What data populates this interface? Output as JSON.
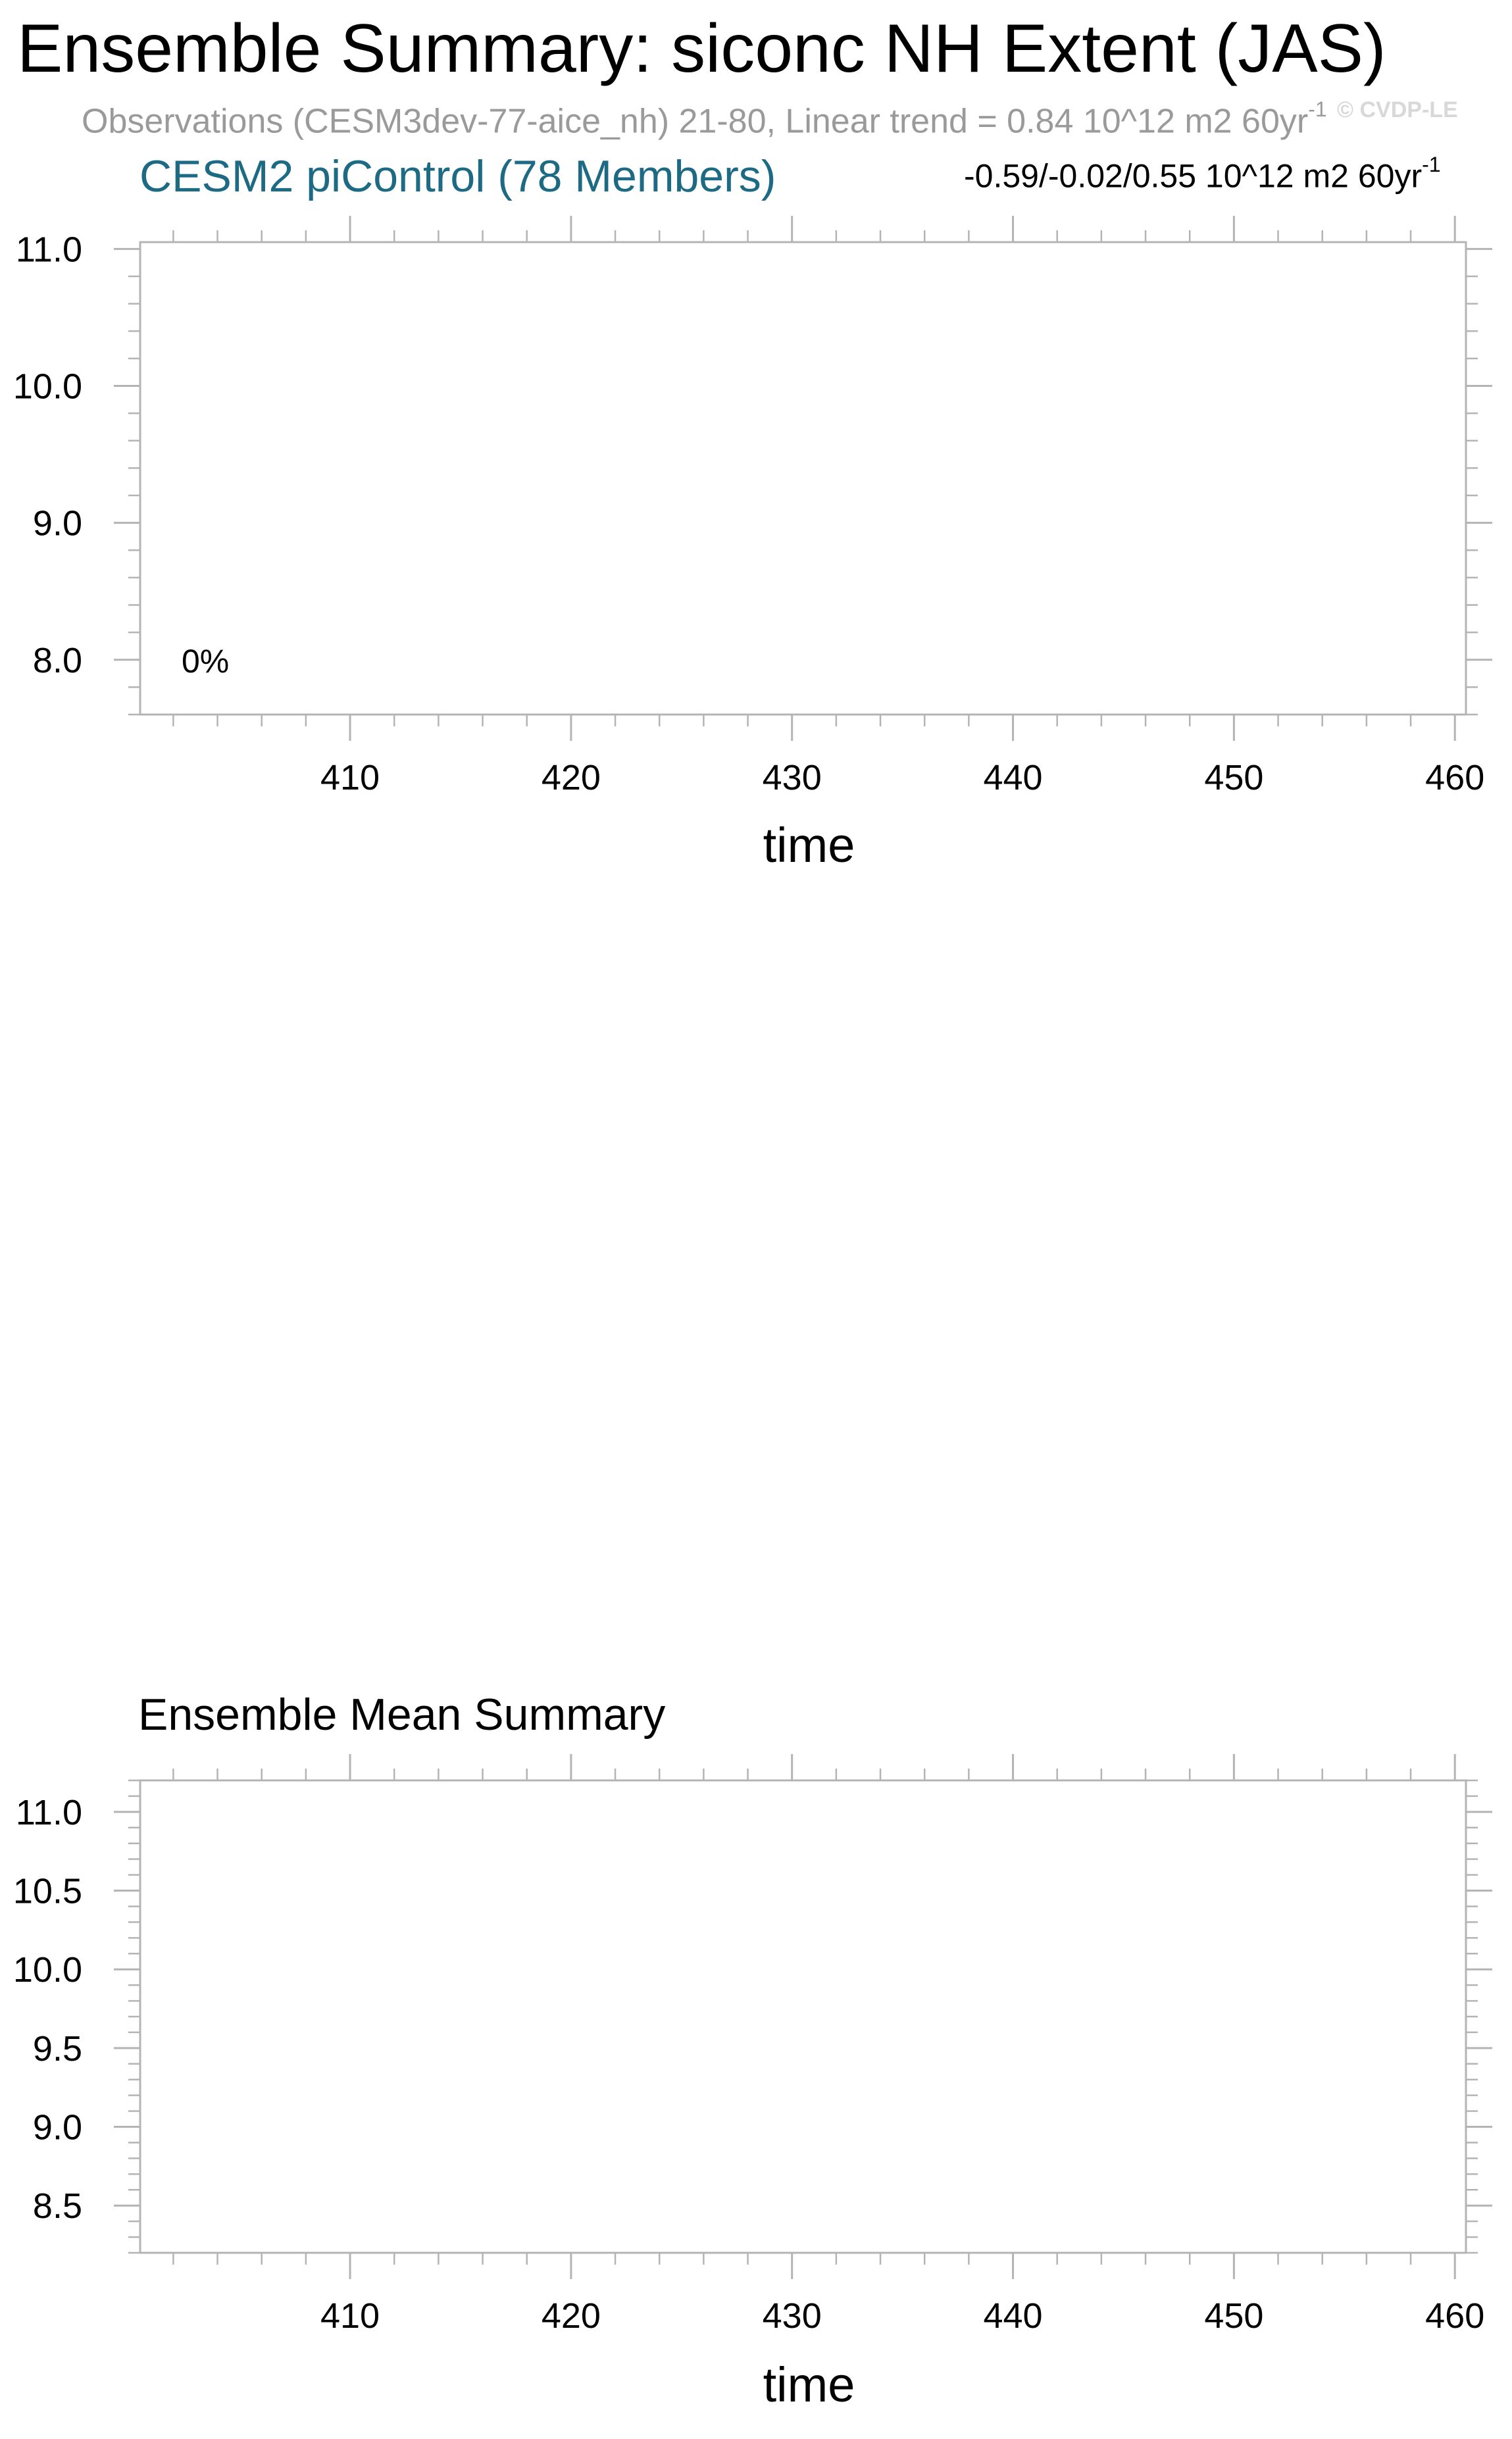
{
  "title": "Ensemble Summary: siconc NH Extent (JAS)",
  "observations": {
    "text": "Observations (CESM3dev-77-aice_nh) 21-80, Linear trend = 0.84 10^12 m2 60yr",
    "superscript": "-1"
  },
  "watermark": "© CVDP-LE",
  "chart_data": [
    {
      "type": "line",
      "title": "CESM2 piControl (78 Members)",
      "title_color": "#1d6a85",
      "annotation": {
        "text": "-0.59/-0.02/0.55 10^12 m2 60yr",
        "superscript": "-1"
      },
      "inset_label": "0%",
      "xlabel": "time",
      "ylabel": "",
      "xlim": [
        400.5,
        460.5
      ],
      "ylim": [
        7.6,
        11.05
      ],
      "x_ticks": [
        410,
        420,
        430,
        440,
        450,
        460
      ],
      "x_tick_labels": [
        "410",
        "420",
        "430",
        "440",
        "450",
        "460"
      ],
      "y_ticks": [
        8.0,
        9.0,
        10.0,
        11.0
      ],
      "y_tick_labels": [
        "8.0",
        "9.0",
        "10.0",
        "11.0"
      ],
      "series": []
    },
    {
      "type": "line",
      "title": "Ensemble Mean Summary",
      "xlabel": "time",
      "ylabel": "",
      "xlim": [
        400.5,
        460.5
      ],
      "ylim": [
        8.2,
        11.2
      ],
      "x_ticks": [
        410,
        420,
        430,
        440,
        450,
        460
      ],
      "x_tick_labels": [
        "410",
        "420",
        "430",
        "440",
        "450",
        "460"
      ],
      "y_ticks": [
        8.5,
        9.0,
        9.5,
        10.0,
        10.5,
        11.0
      ],
      "y_tick_labels": [
        "8.5",
        "9.0",
        "9.5",
        "10.0",
        "10.5",
        "11.0"
      ],
      "series": []
    }
  ],
  "colors": {
    "frame": "#b4b4b4",
    "tick": "#b4b4b4",
    "text": "#000000"
  }
}
